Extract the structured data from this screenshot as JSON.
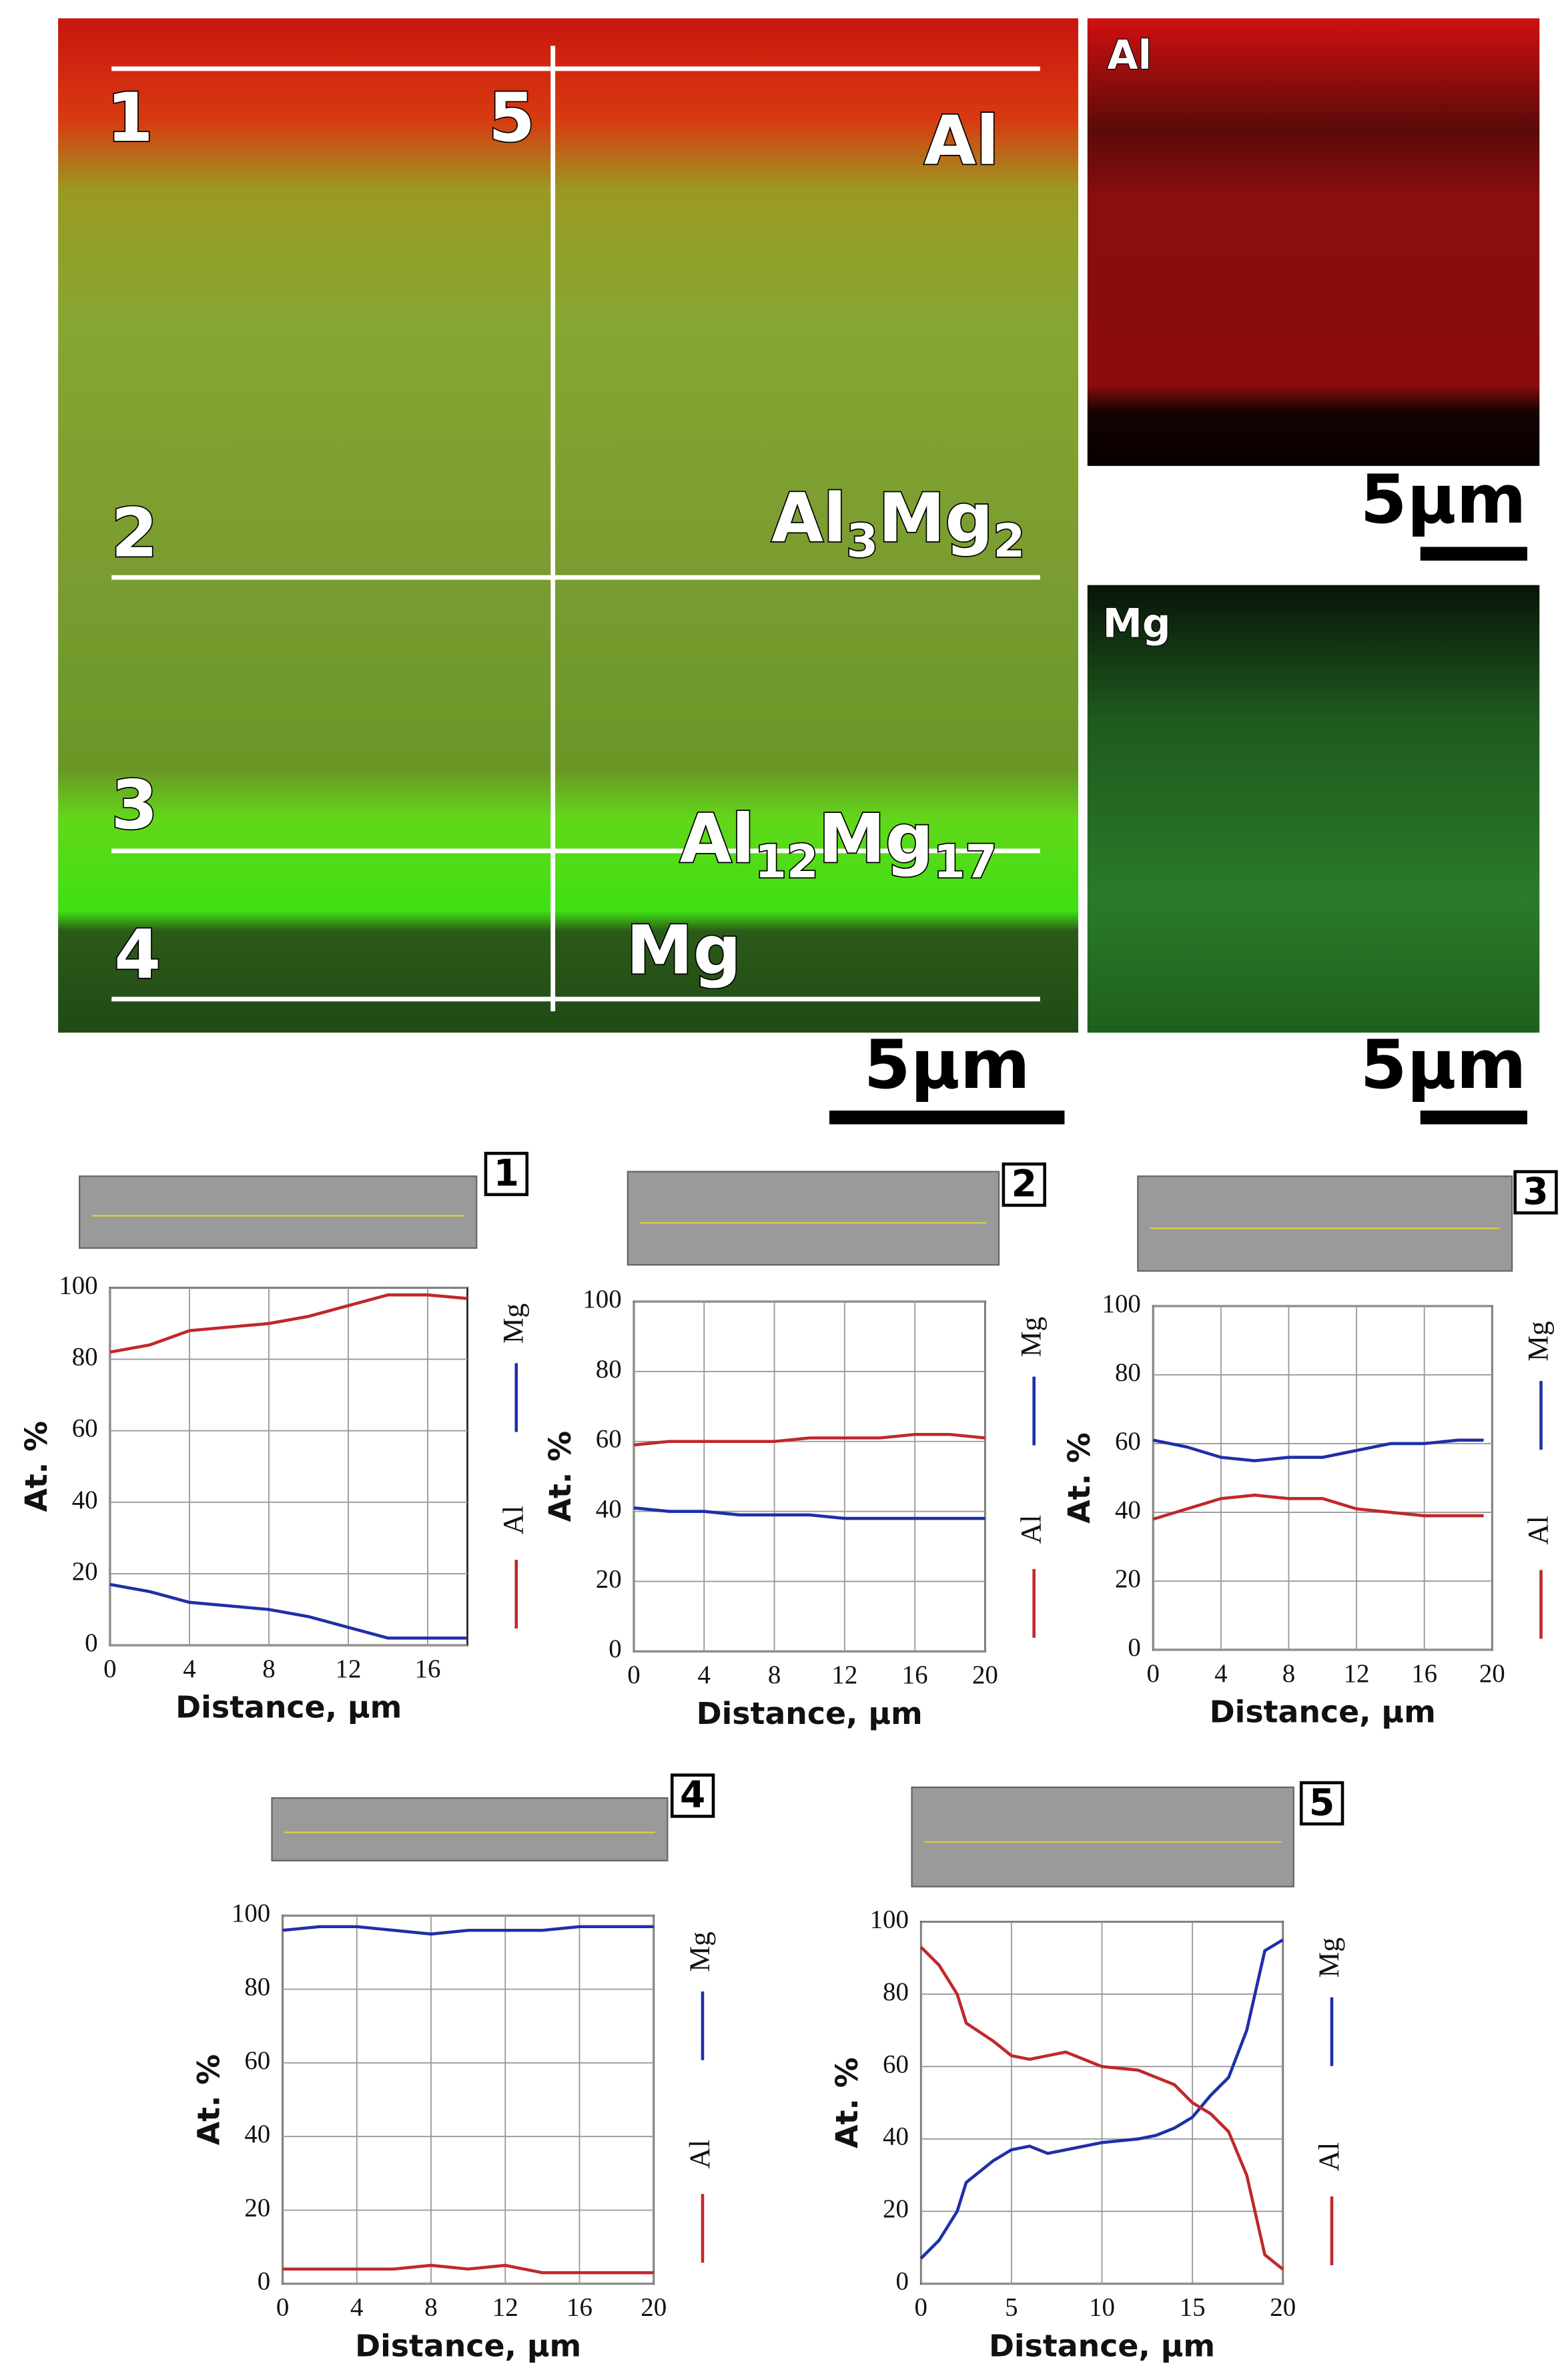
{
  "chart_data": [
    {
      "type": "line",
      "label": "1",
      "xlabel": "Distance, μm",
      "ylabel": "At. %",
      "x": [
        0,
        2,
        4,
        6,
        8,
        10,
        12,
        14,
        16,
        18
      ],
      "xlim": [
        0,
        18
      ],
      "xticks": [
        0,
        4,
        8,
        12,
        16
      ],
      "ylim": [
        0,
        100
      ],
      "yticks": [
        0,
        20,
        40,
        60,
        80,
        100
      ],
      "grid": true,
      "series": [
        {
          "name": "Mg",
          "color": "#1f2fa8",
          "values": [
            17,
            15,
            12,
            11,
            10,
            8,
            5,
            2,
            2,
            2
          ]
        },
        {
          "name": "Al",
          "color": "#c0282b",
          "values": [
            82,
            84,
            88,
            89,
            90,
            92,
            95,
            98,
            98,
            97
          ]
        }
      ]
    },
    {
      "type": "line",
      "label": "2",
      "xlabel": "Distance, μm",
      "ylabel": "At. %",
      "x": [
        0,
        2,
        4,
        6,
        8,
        10,
        12,
        14,
        16,
        18,
        20
      ],
      "xlim": [
        0,
        20
      ],
      "xticks": [
        0,
        4,
        8,
        12,
        16,
        20
      ],
      "ylim": [
        0,
        100
      ],
      "yticks": [
        0,
        20,
        40,
        60,
        80,
        100
      ],
      "grid": true,
      "series": [
        {
          "name": "Mg",
          "color": "#1f2fa8",
          "values": [
            41,
            40,
            40,
            39,
            39,
            39,
            38,
            38,
            38,
            38,
            38
          ]
        },
        {
          "name": "Al",
          "color": "#c0282b",
          "values": [
            59,
            60,
            60,
            60,
            60,
            61,
            61,
            61,
            62,
            62,
            61
          ]
        }
      ]
    },
    {
      "type": "line",
      "label": "3",
      "xlabel": "Distance, μm",
      "ylabel": "At. %",
      "x": [
        0,
        2,
        4,
        6,
        8,
        10,
        12,
        14,
        16,
        18,
        19.5
      ],
      "xlim": [
        0,
        20
      ],
      "xticks": [
        0,
        4,
        8,
        12,
        16,
        20
      ],
      "ylim": [
        0,
        100
      ],
      "yticks": [
        0,
        20,
        40,
        60,
        80,
        100
      ],
      "grid": true,
      "series": [
        {
          "name": "Mg",
          "color": "#1f2fa8",
          "values": [
            61,
            59,
            56,
            55,
            56,
            56,
            58,
            60,
            60,
            61,
            61
          ]
        },
        {
          "name": "Al",
          "color": "#c0282b",
          "values": [
            38,
            41,
            44,
            45,
            44,
            44,
            41,
            40,
            39,
            39,
            39
          ]
        }
      ]
    },
    {
      "type": "line",
      "label": "4",
      "xlabel": "Distance, μm",
      "ylabel": "At. %",
      "x": [
        0,
        2,
        4,
        6,
        8,
        10,
        12,
        14,
        16,
        18,
        20
      ],
      "xlim": [
        0,
        20
      ],
      "xticks": [
        0,
        4,
        8,
        12,
        16,
        20
      ],
      "ylim": [
        0,
        100
      ],
      "yticks": [
        0,
        20,
        40,
        60,
        80,
        100
      ],
      "grid": true,
      "series": [
        {
          "name": "Mg",
          "color": "#1f2fa8",
          "values": [
            96,
            97,
            97,
            96,
            95,
            96,
            96,
            96,
            97,
            97,
            97
          ]
        },
        {
          "name": "Al",
          "color": "#c0282b",
          "values": [
            4,
            4,
            4,
            4,
            5,
            4,
            5,
            3,
            3,
            3,
            3
          ]
        }
      ]
    },
    {
      "type": "line",
      "label": "5",
      "xlabel": "Distance, μm",
      "ylabel": "At. %",
      "x": [
        0,
        1,
        2,
        2.5,
        4,
        5,
        6,
        7,
        8,
        10,
        12,
        13,
        14,
        15,
        16,
        17,
        18,
        19,
        20
      ],
      "xlim": [
        0,
        20
      ],
      "xticks": [
        0,
        5,
        10,
        15,
        20
      ],
      "ylim": [
        0,
        100
      ],
      "yticks": [
        0,
        20,
        40,
        60,
        80,
        100
      ],
      "grid": true,
      "series": [
        {
          "name": "Mg",
          "color": "#1f2fa8",
          "values": [
            7,
            12,
            20,
            28,
            34,
            37,
            38,
            36,
            37,
            39,
            40,
            41,
            43,
            46,
            52,
            57,
            70,
            92,
            95
          ]
        },
        {
          "name": "Al",
          "color": "#c0282b",
          "values": [
            93,
            88,
            80,
            72,
            67,
            63,
            62,
            63,
            64,
            60,
            59,
            57,
            55,
            50,
            47,
            42,
            30,
            8,
            4
          ]
        }
      ]
    }
  ],
  "micrograph": {
    "line_labels": [
      "1",
      "2",
      "3",
      "4",
      "5"
    ],
    "phases": [
      {
        "parts": [
          "Al"
        ]
      },
      {
        "parts": [
          "Al",
          "3",
          "Mg",
          "2"
        ]
      },
      {
        "parts": [
          "Al",
          "12",
          "Mg",
          "17"
        ]
      },
      {
        "parts": [
          "Mg"
        ]
      }
    ],
    "element_maps": [
      "Al",
      "Mg"
    ],
    "scale_bars": [
      "5μm",
      "5μm",
      "5μm"
    ]
  }
}
